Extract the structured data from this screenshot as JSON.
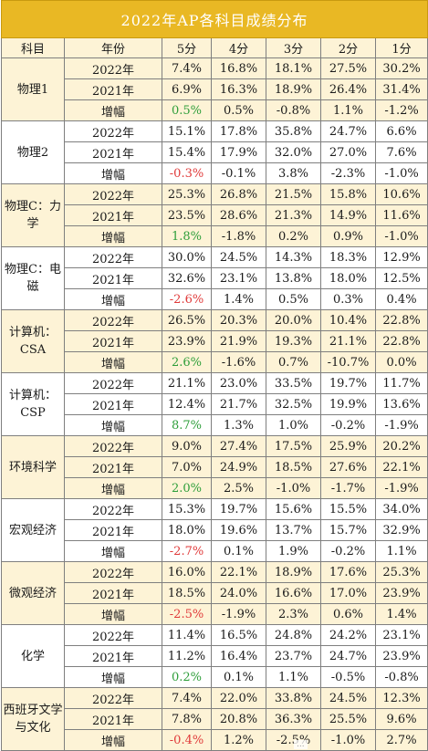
{
  "title": "2022年AP各科目成绩分布",
  "headers": [
    "科目",
    "年份",
    "5分",
    "4分",
    "3分",
    "2分",
    "1分"
  ],
  "watermark": "...",
  "subjects": [
    {
      "name": "物理1",
      "rows": [
        {
          "year": "2022年",
          "v": [
            "7.4%",
            "16.8%",
            "18.1%",
            "27.5%",
            "30.2%"
          ]
        },
        {
          "year": "2021年",
          "v": [
            "6.9%",
            "16.3%",
            "18.9%",
            "26.4%",
            "31.4%"
          ]
        },
        {
          "year": "增幅",
          "v": [
            "0.5%",
            "0.5%",
            "-0.8%",
            "1.1%",
            "-1.2%"
          ]
        }
      ]
    },
    {
      "name": "物理2",
      "rows": [
        {
          "year": "2022年",
          "v": [
            "15.1%",
            "17.8%",
            "35.8%",
            "24.7%",
            "6.6%"
          ]
        },
        {
          "year": "2021年",
          "v": [
            "15.4%",
            "17.9%",
            "32.0%",
            "27.0%",
            "7.6%"
          ]
        },
        {
          "year": "增幅",
          "v": [
            "-0.3%",
            "-0.1%",
            "3.8%",
            "-2.3%",
            "-1.0%"
          ]
        }
      ]
    },
    {
      "name": "物理C：力学",
      "rows": [
        {
          "year": "2022年",
          "v": [
            "25.3%",
            "26.8%",
            "21.5%",
            "15.8%",
            "10.6%"
          ]
        },
        {
          "year": "2021年",
          "v": [
            "23.5%",
            "28.6%",
            "21.3%",
            "14.9%",
            "11.6%"
          ]
        },
        {
          "year": "增幅",
          "v": [
            "1.8%",
            "-1.8%",
            "0.2%",
            "0.9%",
            "-1.0%"
          ]
        }
      ]
    },
    {
      "name": "物理C：电磁",
      "rows": [
        {
          "year": "2022年",
          "v": [
            "30.0%",
            "24.5%",
            "14.3%",
            "18.3%",
            "12.9%"
          ]
        },
        {
          "year": "2021年",
          "v": [
            "32.6%",
            "23.1%",
            "13.8%",
            "18.0%",
            "12.5%"
          ]
        },
        {
          "year": "增幅",
          "v": [
            "-2.6%",
            "1.4%",
            "0.5%",
            "0.3%",
            "0.4%"
          ]
        }
      ]
    },
    {
      "name": "计算机：CSA",
      "rows": [
        {
          "year": "2022年",
          "v": [
            "26.5%",
            "20.3%",
            "20.0%",
            "10.4%",
            "22.8%"
          ]
        },
        {
          "year": "2021年",
          "v": [
            "23.9%",
            "21.9%",
            "19.3%",
            "21.1%",
            "22.8%"
          ]
        },
        {
          "year": "增幅",
          "v": [
            "2.6%",
            "-1.6%",
            "0.7%",
            "-10.7%",
            "0.0%"
          ]
        }
      ]
    },
    {
      "name": "计算机：CSP",
      "rows": [
        {
          "year": "2022年",
          "v": [
            "21.1%",
            "23.0%",
            "33.5%",
            "19.7%",
            "11.7%"
          ]
        },
        {
          "year": "2021年",
          "v": [
            "12.4%",
            "21.7%",
            "32.5%",
            "19.9%",
            "13.6%"
          ]
        },
        {
          "year": "增幅",
          "v": [
            "8.7%",
            "1.3%",
            "1.0%",
            "-0.2%",
            "-1.9%"
          ]
        }
      ]
    },
    {
      "name": "环境科学",
      "rows": [
        {
          "year": "2022年",
          "v": [
            "9.0%",
            "27.4%",
            "17.5%",
            "25.9%",
            "20.2%"
          ]
        },
        {
          "year": "2021年",
          "v": [
            "7.0%",
            "24.9%",
            "18.5%",
            "27.6%",
            "22.1%"
          ]
        },
        {
          "year": "增幅",
          "v": [
            "2.0%",
            "2.5%",
            "-1.0%",
            "-1.7%",
            "-1.9%"
          ]
        }
      ]
    },
    {
      "name": "宏观经济",
      "rows": [
        {
          "year": "2022年",
          "v": [
            "15.3%",
            "19.7%",
            "15.6%",
            "15.5%",
            "34.0%"
          ]
        },
        {
          "year": "2021年",
          "v": [
            "18.0%",
            "19.6%",
            "13.7%",
            "15.7%",
            "32.9%"
          ]
        },
        {
          "year": "增幅",
          "v": [
            "-2.7%",
            "0.1%",
            "1.9%",
            "-0.2%",
            "1.1%"
          ]
        }
      ]
    },
    {
      "name": "微观经济",
      "rows": [
        {
          "year": "2022年",
          "v": [
            "16.0%",
            "22.1%",
            "18.9%",
            "17.6%",
            "25.3%"
          ]
        },
        {
          "year": "2021年",
          "v": [
            "18.5%",
            "24.0%",
            "16.6%",
            "17.0%",
            "23.9%"
          ]
        },
        {
          "year": "增幅",
          "v": [
            "-2.5%",
            "-1.9%",
            "2.3%",
            "0.6%",
            "1.4%"
          ]
        }
      ]
    },
    {
      "name": "化学",
      "rows": [
        {
          "year": "2022年",
          "v": [
            "11.4%",
            "16.5%",
            "24.8%",
            "24.2%",
            "23.1%"
          ]
        },
        {
          "year": "2021年",
          "v": [
            "11.2%",
            "16.4%",
            "23.7%",
            "24.7%",
            "23.9%"
          ]
        },
        {
          "year": "增幅",
          "v": [
            "0.2%",
            "0.1%",
            "1.1%",
            "-0.5%",
            "-0.8%"
          ]
        }
      ]
    },
    {
      "name": "西班牙文学与文化",
      "rows": [
        {
          "year": "2022年",
          "v": [
            "7.4%",
            "22.0%",
            "33.8%",
            "24.5%",
            "12.3%"
          ]
        },
        {
          "year": "2021年",
          "v": [
            "7.8%",
            "20.8%",
            "36.3%",
            "25.5%",
            "9.6%"
          ]
        },
        {
          "year": "增幅",
          "v": [
            "-0.4%",
            "1.2%",
            "-2.5%",
            "-1.0%",
            "2.7%"
          ]
        }
      ]
    }
  ]
}
